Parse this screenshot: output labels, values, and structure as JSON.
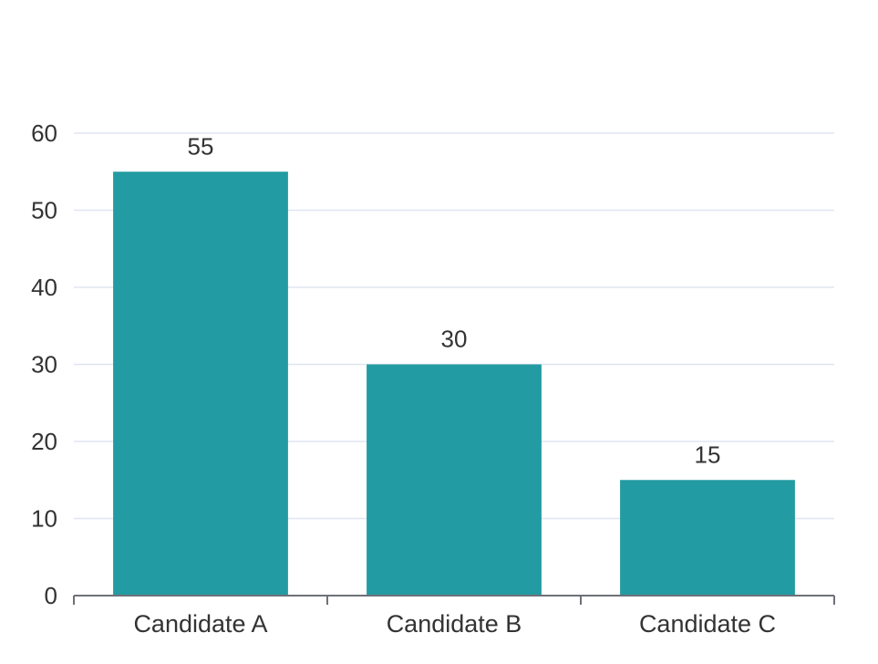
{
  "chart_data": {
    "type": "bar",
    "categories": [
      "Candidate A",
      "Candidate B",
      "Candidate C"
    ],
    "values": [
      55,
      30,
      15
    ],
    "data_labels": [
      "55",
      "30",
      "15"
    ],
    "y_ticks": [
      "0",
      "10",
      "20",
      "30",
      "40",
      "50",
      "60"
    ],
    "ylim": [
      0,
      60
    ],
    "grid": true,
    "colors": {
      "bar": "#239ba2",
      "grid": "#e0e6f1",
      "axis": "#6e7079",
      "text": "#333333"
    }
  }
}
